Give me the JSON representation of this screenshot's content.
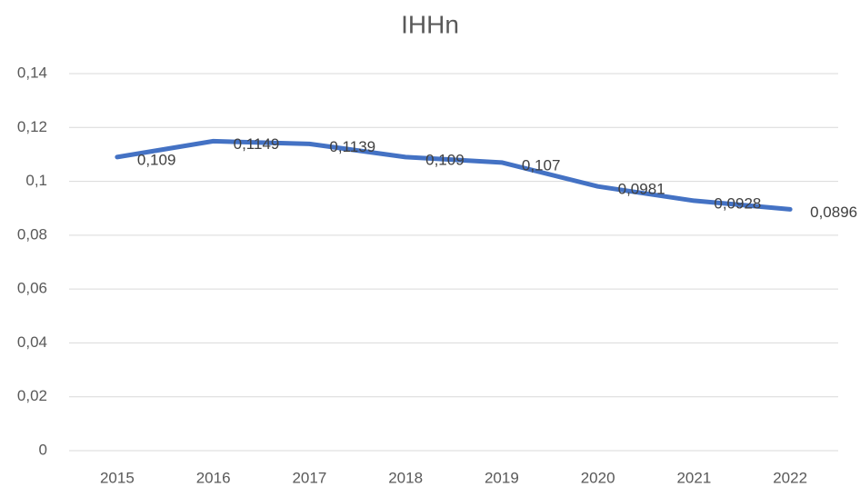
{
  "chart_data": {
    "type": "line",
    "title": "IHHn",
    "categories": [
      "2015",
      "2016",
      "2017",
      "2018",
      "2019",
      "2020",
      "2021",
      "2022"
    ],
    "series": [
      {
        "name": "IHHn",
        "color": "#4472c4",
        "values": [
          0.109,
          0.1149,
          0.1139,
          0.109,
          0.107,
          0.0981,
          0.0928,
          0.0896
        ],
        "value_labels": [
          "0,109",
          "0,1149",
          "0,1139",
          "0,109",
          "0,107",
          "0,0981",
          "0,0928",
          "0,0896"
        ]
      }
    ],
    "ylim": [
      0,
      0.14
    ],
    "yticks": [
      0,
      {
        "value": 0.02,
        "label": "0,02"
      },
      {
        "value": 0.04,
        "label": "0,04"
      },
      {
        "value": 0.06,
        "label": "0,06"
      },
      {
        "value": 0.08,
        "label": "0,08"
      },
      {
        "value": 0.1,
        "label": "0,1"
      },
      {
        "value": 0.12,
        "label": "0,12"
      },
      {
        "value": 0.14,
        "label": "0,14"
      }
    ],
    "grid": true
  }
}
